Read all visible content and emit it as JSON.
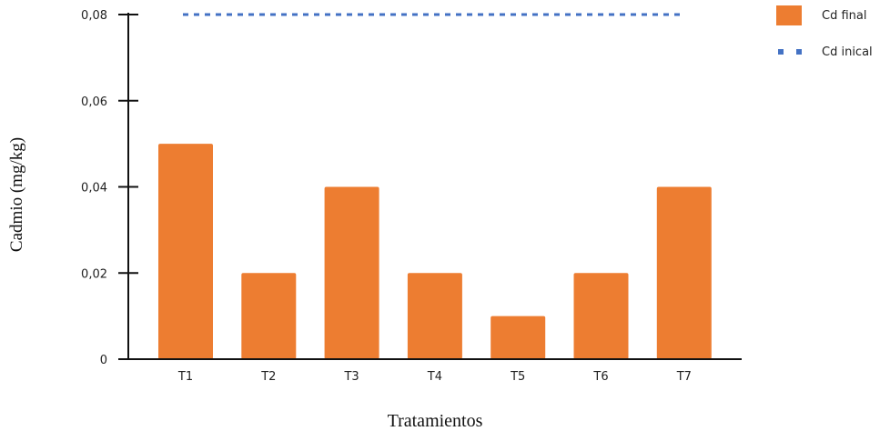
{
  "chart_data": {
    "type": "bar",
    "categories": [
      "T1",
      "T2",
      "T3",
      "T4",
      "T5",
      "T6",
      "T7"
    ],
    "series": [
      {
        "name": "Cd final",
        "type": "bar",
        "values": [
          0.05,
          0.02,
          0.04,
          0.02,
          0.01,
          0.02,
          0.04
        ],
        "color": "#ED7D31"
      },
      {
        "name": "Cd inical",
        "type": "line",
        "style": "dotted",
        "values": [
          0.08,
          0.08,
          0.08,
          0.08,
          0.08,
          0.08,
          0.08
        ],
        "color": "#4472C4"
      }
    ],
    "xlabel": "Tratamientos",
    "ylabel": "Cadmio (mg/kg)",
    "ylim": [
      0,
      0.08
    ],
    "yticks": [
      0,
      0.02,
      0.04,
      0.06,
      0.08
    ],
    "ytick_labels": [
      "0",
      "0,02",
      "0,04",
      "0,06",
      "0,08"
    ],
    "grid": false,
    "legend": "top-right"
  }
}
